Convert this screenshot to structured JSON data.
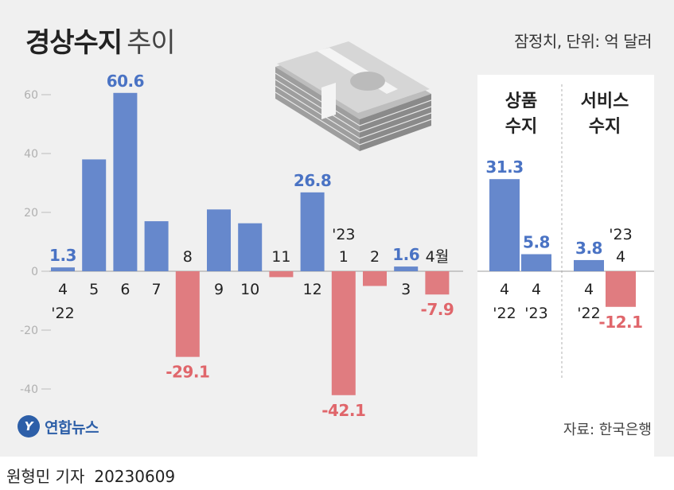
{
  "header": {
    "title_main": "경상수지",
    "title_sub": "추이",
    "unit": "잠정치, 단위: 억 달러"
  },
  "footer": {
    "logo_text": "연합뉴스",
    "source": "자료: 한국은행",
    "reporter": "원형민 기자",
    "date": "20230609"
  },
  "colors": {
    "positive": "#6688cc",
    "negative": "#e07c80",
    "positive_label": "#4a73c4",
    "negative_label": "#e0666b",
    "axis_text": "#b0b0b0"
  },
  "chart_data": [
    {
      "type": "bar",
      "yticks": [
        60,
        40,
        20,
        0,
        -20,
        -40
      ],
      "ylim": [
        -42.1,
        60.6
      ],
      "grid": false,
      "categories": [
        {
          "label": "4",
          "sub": "'22"
        },
        {
          "label": "5"
        },
        {
          "label": "6"
        },
        {
          "label": "7"
        },
        {
          "label": "8"
        },
        {
          "label": "9"
        },
        {
          "label": "10"
        },
        {
          "label": "11"
        },
        {
          "label": "12"
        },
        {
          "label": "1",
          "pre": "'23"
        },
        {
          "label": "2"
        },
        {
          "label": "3"
        },
        {
          "label": "4월"
        }
      ],
      "values": [
        1.3,
        38.0,
        60.6,
        17.0,
        -29.1,
        21.0,
        16.3,
        -2.0,
        26.8,
        -42.1,
        -5.0,
        1.6,
        -7.9
      ],
      "value_labels": [
        "1.3",
        "",
        "60.6",
        "",
        "-29.1",
        "",
        "",
        "",
        "26.8",
        "-42.1",
        "",
        "1.6",
        "-7.9"
      ]
    },
    {
      "type": "bar",
      "title": "상품 수지",
      "categories": [
        {
          "label": "4",
          "sub": "'22"
        },
        {
          "label": "4",
          "sub": "'23"
        }
      ],
      "values": [
        31.3,
        5.8
      ],
      "value_labels": [
        "31.3",
        "5.8"
      ]
    },
    {
      "type": "bar",
      "title": "서비스 수지",
      "categories": [
        {
          "label": "4",
          "sub": "'22"
        },
        {
          "label": "4",
          "pre": "'23"
        }
      ],
      "values": [
        3.8,
        -12.1
      ],
      "value_labels": [
        "3.8",
        "-12.1"
      ]
    }
  ]
}
